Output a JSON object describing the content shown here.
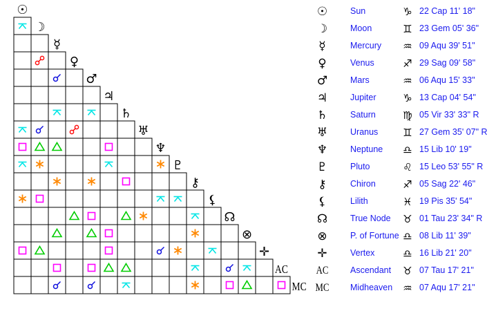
{
  "colors": {
    "conjunction": "#1010dd",
    "opposition": "#ff1010",
    "square": "#ff00ff",
    "trine": "#00cc00",
    "sextile": "#ff8800",
    "semisextile": "#00e5e5",
    "text": "#1a1aee"
  },
  "bodies": [
    {
      "glyph": "☉",
      "icon": "sun-icon",
      "name": "Sun",
      "sign_glyph": "♑",
      "sign_icon": "capricorn-icon",
      "position": "22 Cap 11' 18\""
    },
    {
      "glyph": "☽",
      "icon": "moon-icon",
      "name": "Moon",
      "sign_glyph": "♊",
      "sign_icon": "gemini-icon",
      "position": "23 Gem 05' 36\""
    },
    {
      "glyph": "☿",
      "icon": "mercury-icon",
      "name": "Mercury",
      "sign_glyph": "♒",
      "sign_icon": "aquarius-icon",
      "position": "09 Aqu 39' 51\""
    },
    {
      "glyph": "♀",
      "icon": "venus-icon",
      "name": "Venus",
      "sign_glyph": "♐",
      "sign_icon": "sagittarius-icon",
      "position": "29 Sag 09' 58\""
    },
    {
      "glyph": "♂",
      "icon": "mars-icon",
      "name": "Mars",
      "sign_glyph": "♒",
      "sign_icon": "aquarius-icon",
      "position": "06 Aqu 15' 33\""
    },
    {
      "glyph": "♃",
      "icon": "jupiter-icon",
      "name": "Jupiter",
      "sign_glyph": "♑",
      "sign_icon": "capricorn-icon",
      "position": "13 Cap 04' 54\""
    },
    {
      "glyph": "♄",
      "icon": "saturn-icon",
      "name": "Saturn",
      "sign_glyph": "♍",
      "sign_icon": "virgo-icon",
      "position": "05 Vir 33' 33\" R"
    },
    {
      "glyph": "♅",
      "icon": "uranus-icon",
      "name": "Uranus",
      "sign_glyph": "♊",
      "sign_icon": "gemini-icon",
      "position": "27 Gem 35' 07\" R"
    },
    {
      "glyph": "♆",
      "icon": "neptune-icon",
      "name": "Neptune",
      "sign_glyph": "♎",
      "sign_icon": "libra-icon",
      "position": "15 Lib 10' 19\""
    },
    {
      "glyph": "♇",
      "icon": "pluto-icon",
      "name": "Pluto",
      "sign_glyph": "♌",
      "sign_icon": "leo-icon",
      "position": "15 Leo 53' 55\" R"
    },
    {
      "glyph": "⚷",
      "icon": "chiron-icon",
      "name": "Chiron",
      "sign_glyph": "♐",
      "sign_icon": "sagittarius-icon",
      "position": "05 Sag 22' 46\""
    },
    {
      "glyph": "⚸",
      "icon": "lilith-icon",
      "name": "Lilith",
      "sign_glyph": "♓",
      "sign_icon": "pisces-icon",
      "position": "19 Pis 35' 54\""
    },
    {
      "glyph": "☊",
      "icon": "true-node-icon",
      "name": "True Node",
      "sign_glyph": "♉",
      "sign_icon": "taurus-icon",
      "position": "01 Tau 23' 34\" R"
    },
    {
      "glyph": "⊗",
      "icon": "part-of-fortune-icon",
      "name": "P. of Fortune",
      "sign_glyph": "♎",
      "sign_icon": "libra-icon",
      "position": "08 Lib 11' 39\""
    },
    {
      "glyph": "✛",
      "icon": "vertex-icon",
      "name": "Vertex",
      "sign_glyph": "♎",
      "sign_icon": "libra-icon",
      "position": "16 Lib 21' 20\""
    },
    {
      "glyph": "AC",
      "icon": "ascendant-icon",
      "name": "Ascendant",
      "sign_glyph": "♉",
      "sign_icon": "taurus-icon",
      "position": "07 Tau 17' 21\""
    },
    {
      "glyph": "MC",
      "icon": "midheaven-icon",
      "name": "Midheaven",
      "sign_glyph": "♒",
      "sign_icon": "aquarius-icon",
      "position": "07 Aqu 17' 21\""
    }
  ],
  "aspects": [
    [
      1,
      0,
      "semisextile"
    ],
    [
      3,
      1,
      "opposition"
    ],
    [
      4,
      2,
      "conjunction"
    ],
    [
      6,
      2,
      "semisextile"
    ],
    [
      6,
      4,
      "semisextile"
    ],
    [
      7,
      0,
      "semisextile"
    ],
    [
      7,
      1,
      "conjunction"
    ],
    [
      7,
      3,
      "opposition"
    ],
    [
      8,
      0,
      "square"
    ],
    [
      8,
      1,
      "trine"
    ],
    [
      8,
      2,
      "trine"
    ],
    [
      8,
      5,
      "square"
    ],
    [
      9,
      0,
      "semisextile"
    ],
    [
      9,
      1,
      "sextile"
    ],
    [
      9,
      5,
      "semisextile"
    ],
    [
      9,
      8,
      "sextile"
    ],
    [
      10,
      2,
      "sextile"
    ],
    [
      10,
      4,
      "sextile"
    ],
    [
      10,
      6,
      "square"
    ],
    [
      11,
      0,
      "sextile"
    ],
    [
      11,
      1,
      "square"
    ],
    [
      11,
      8,
      "semisextile"
    ],
    [
      11,
      9,
      "semisextile"
    ],
    [
      12,
      3,
      "trine"
    ],
    [
      12,
      4,
      "square"
    ],
    [
      12,
      6,
      "trine"
    ],
    [
      12,
      7,
      "sextile"
    ],
    [
      12,
      10,
      "semisextile"
    ],
    [
      13,
      2,
      "trine"
    ],
    [
      13,
      4,
      "trine"
    ],
    [
      13,
      5,
      "square"
    ],
    [
      13,
      10,
      "sextile"
    ],
    [
      14,
      0,
      "square"
    ],
    [
      14,
      1,
      "trine"
    ],
    [
      14,
      5,
      "square"
    ],
    [
      14,
      8,
      "conjunction"
    ],
    [
      14,
      9,
      "sextile"
    ],
    [
      14,
      11,
      "semisextile"
    ],
    [
      15,
      2,
      "square"
    ],
    [
      15,
      4,
      "square"
    ],
    [
      15,
      5,
      "trine"
    ],
    [
      15,
      6,
      "trine"
    ],
    [
      15,
      10,
      "semisextile"
    ],
    [
      15,
      12,
      "conjunction"
    ],
    [
      15,
      13,
      "semisextile"
    ],
    [
      16,
      2,
      "conjunction"
    ],
    [
      16,
      4,
      "conjunction"
    ],
    [
      16,
      6,
      "semisextile"
    ],
    [
      16,
      10,
      "sextile"
    ],
    [
      16,
      12,
      "square"
    ],
    [
      16,
      13,
      "trine"
    ],
    [
      16,
      15,
      "square"
    ]
  ]
}
